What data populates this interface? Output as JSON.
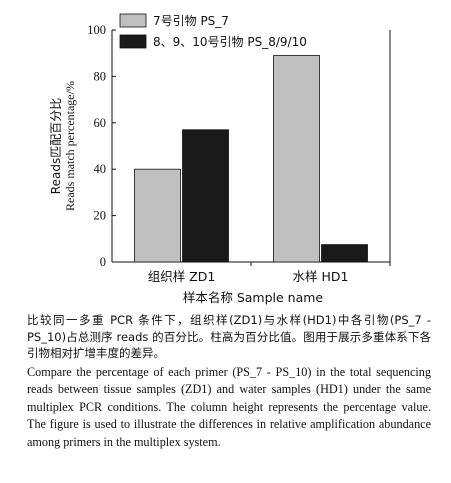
{
  "chart_data": {
    "type": "bar",
    "categories": [
      "组织样 ZD1",
      "水样 HD1"
    ],
    "series": [
      {
        "name": "7号引物 PS_7",
        "values": [
          40,
          89
        ],
        "color": "#c0c0c0"
      },
      {
        "name": "8、9、10号引物 PS_8/9/10",
        "values": [
          57,
          7.5
        ],
        "color": "#1a1a1a"
      }
    ],
    "xlabel": "样本名称 Sample name",
    "ylabel_zh": "Reads匹配百分比",
    "ylabel_en": "Reads match percentage/%",
    "ylim": [
      0,
      100
    ],
    "yticks": [
      0,
      20,
      40,
      60,
      80,
      100
    ],
    "legend_position": "top-left",
    "grid": false
  },
  "caption": {
    "zh": "比较同一多重 PCR 条件下，组织样(ZD1)与水样(HD1)中各引物(PS_7 - PS_10)占总测序 reads 的百分比。柱高为百分比值。图用于展示多重体系下各引物相对扩增丰度的差异。",
    "en": "Compare the percentage of each primer (PS_7 - PS_10) in the total sequencing reads between tissue samples (ZD1) and water samples (HD1) under the same multiplex PCR conditions. The column height represents the percentage value. The figure is used to illustrate the differences in relative amplification abundance among primers in the multiplex system."
  }
}
